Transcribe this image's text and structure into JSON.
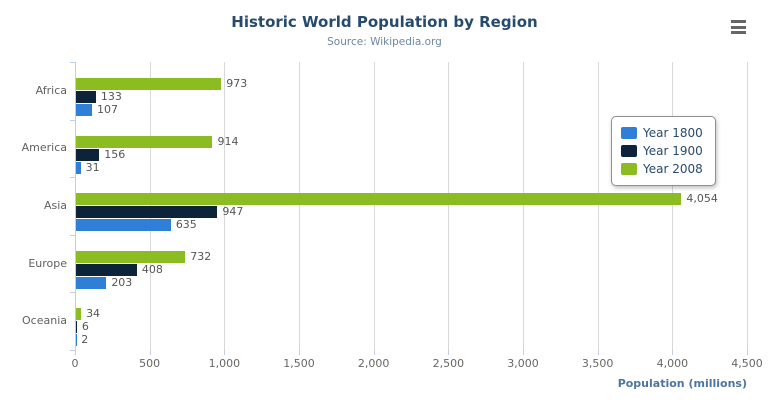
{
  "chart": {
    "export_button": "chart-context-menu"
  },
  "chart_data": {
    "type": "bar",
    "title": "Historic World Population by Region",
    "subtitle": "Source: Wikipedia.org",
    "categories": [
      "Africa",
      "America",
      "Asia",
      "Europe",
      "Oceania"
    ],
    "series": [
      {
        "name": "Year 1800",
        "color": "#2f7ed8",
        "values": [
          107,
          31,
          635,
          203,
          2
        ]
      },
      {
        "name": "Year 1900",
        "color": "#0d233a",
        "values": [
          133,
          156,
          947,
          408,
          6
        ]
      },
      {
        "name": "Year 2008",
        "color": "#8bbc21",
        "values": [
          973,
          914,
          4054,
          732,
          34
        ]
      }
    ],
    "xlabel": "Population (millions)",
    "ylabel": "",
    "xlim": [
      0,
      4500
    ],
    "xticks": [
      0,
      500,
      1000,
      1500,
      2000,
      2500,
      3000,
      3500,
      4000,
      4500
    ],
    "grid": true,
    "legend_position": "right",
    "data_labels": true,
    "colors": {
      "title": "#274b6d",
      "subtitle": "#6d869f",
      "axis_labels": "#666666",
      "category_labels": "#606060",
      "data_labels": "#555555",
      "gridline": "#d8d8d8",
      "axis_line": "#c0d0e0",
      "legend_border": "#909090",
      "legend_text": "#274b6d",
      "menu_icon": "#666666"
    }
  }
}
